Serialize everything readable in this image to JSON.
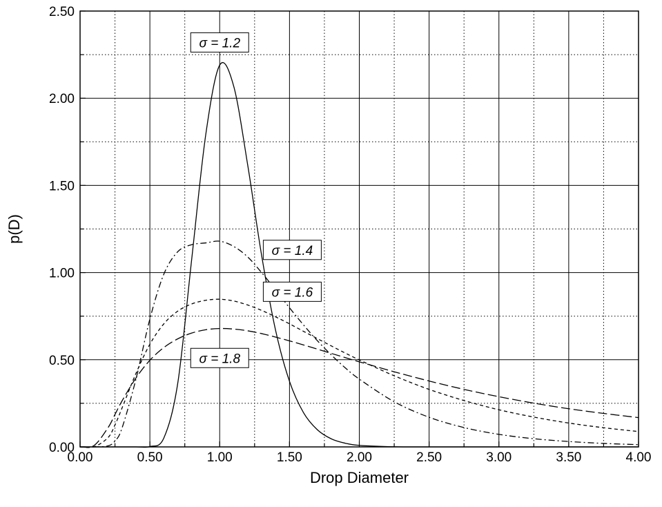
{
  "chart_data": {
    "type": "line",
    "xlabel": "Drop Diameter",
    "ylabel": "p(D)",
    "xlim": [
      0,
      4
    ],
    "ylim": [
      0,
      2.5
    ],
    "x_ticks": [
      "0.00",
      "0.50",
      "1.00",
      "1.50",
      "2.00",
      "2.50",
      "3.00",
      "3.50",
      "4.00"
    ],
    "y_ticks": [
      "0.00",
      "0.50",
      "1.00",
      "1.50",
      "2.00",
      "2.50"
    ],
    "grid": {
      "major": "solid",
      "minor": "dotted",
      "x_minor_step": 0.25,
      "y_minor_step": 0.25
    },
    "x": [
      0.0,
      0.1,
      0.2,
      0.25,
      0.3,
      0.4,
      0.5,
      0.6,
      0.7,
      0.8,
      0.9,
      1.0,
      1.1,
      1.2,
      1.3,
      1.4,
      1.5,
      1.6,
      1.7,
      1.8,
      1.9,
      2.0,
      2.25,
      2.5,
      2.75,
      3.0,
      3.25,
      3.5,
      3.75,
      4.0
    ],
    "series": [
      {
        "label": "σ = 1.2",
        "line_style": "solid",
        "values": [
          0.0,
          0.0,
          0.0,
          0.0,
          0.0,
          0.0,
          0.002,
          0.051,
          0.367,
          1.08,
          1.79,
          2.19,
          2.07,
          1.62,
          1.1,
          0.67,
          0.376,
          0.197,
          0.098,
          0.046,
          0.021,
          0.009,
          0.001,
          0.0,
          0.0,
          0.0,
          0.0,
          0.0,
          0.0,
          0.0
        ]
      },
      {
        "label": "σ = 1.4",
        "line_style": "dash-dot",
        "values": [
          0.0,
          0.0,
          0.006,
          0.034,
          0.107,
          0.388,
          0.734,
          0.991,
          1.12,
          1.16,
          1.17,
          1.18,
          1.15,
          1.09,
          1.0,
          0.901,
          0.798,
          0.7,
          0.609,
          0.527,
          0.453,
          0.389,
          0.259,
          0.17,
          0.111,
          0.072,
          0.047,
          0.031,
          0.02,
          0.013
        ]
      },
      {
        "label": "σ = 1.6",
        "line_style": "dashed",
        "values": [
          0.0,
          0.001,
          0.053,
          0.126,
          0.222,
          0.421,
          0.589,
          0.706,
          0.779,
          0.82,
          0.841,
          0.847,
          0.837,
          0.814,
          0.783,
          0.746,
          0.706,
          0.663,
          0.621,
          0.579,
          0.538,
          0.499,
          0.408,
          0.33,
          0.266,
          0.213,
          0.171,
          0.137,
          0.11,
          0.088
        ]
      },
      {
        "label": "σ = 1.8",
        "line_style": "long-dash",
        "values": [
          0.0,
          0.008,
          0.11,
          0.186,
          0.263,
          0.395,
          0.497,
          0.57,
          0.62,
          0.653,
          0.672,
          0.679,
          0.676,
          0.666,
          0.65,
          0.63,
          0.608,
          0.585,
          0.561,
          0.536,
          0.512,
          0.488,
          0.431,
          0.378,
          0.33,
          0.288,
          0.251,
          0.219,
          0.192,
          0.168
        ]
      }
    ],
    "annotations": [
      {
        "text": "σ = 1.2",
        "x": 1.0,
        "y": 2.32
      },
      {
        "text": "σ = 1.4",
        "x": 1.52,
        "y": 1.13
      },
      {
        "text": "σ = 1.6",
        "x": 1.52,
        "y": 0.89
      },
      {
        "text": "σ = 1.8",
        "x": 1.0,
        "y": 0.51
      }
    ]
  }
}
